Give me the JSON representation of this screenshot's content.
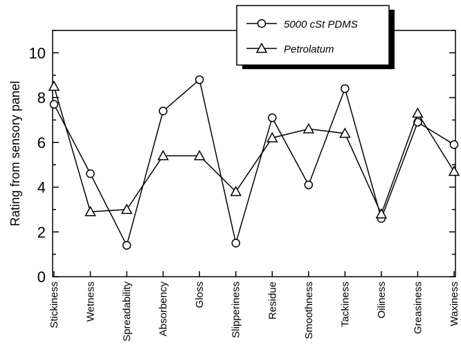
{
  "chart_data": {
    "type": "line",
    "title": "",
    "xlabel": "",
    "ylabel": "Rating from sensory panel",
    "ylim": [
      0,
      11
    ],
    "yticks": [
      0,
      2,
      4,
      6,
      8,
      10
    ],
    "grid": false,
    "legend_position": "top-right",
    "categories": [
      "Stickiness",
      "Wetness",
      "Spreadability",
      "Absorbency",
      "Gloss",
      "Slipperiness",
      "Residue",
      "Smoothness",
      "Tackiness",
      "Oiliness",
      "Greasiness",
      "Waxiness"
    ],
    "series": [
      {
        "name": "5000 cSt PDMS",
        "marker": "circle",
        "values": [
          7.7,
          4.6,
          1.4,
          7.4,
          8.8,
          1.5,
          7.1,
          4.1,
          8.4,
          2.6,
          6.9,
          5.9
        ]
      },
      {
        "name": "Petrolatum",
        "marker": "triangle",
        "values": [
          8.5,
          2.9,
          3.0,
          5.4,
          5.4,
          3.8,
          6.2,
          6.6,
          6.4,
          2.8,
          7.3,
          4.7
        ]
      }
    ]
  }
}
